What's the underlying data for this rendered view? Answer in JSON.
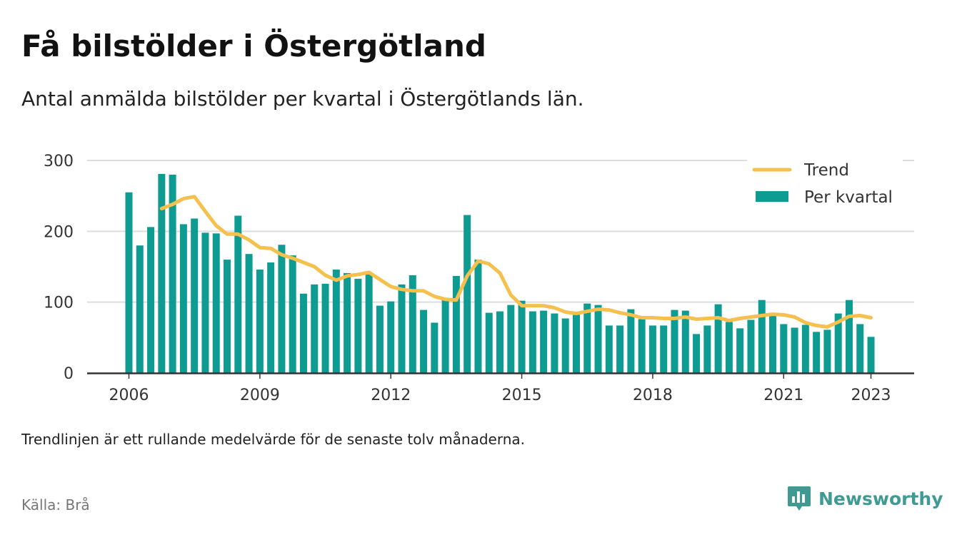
{
  "title": "Få bilstölder i Östergötland",
  "subtitle": "Antal anmälda bilstölder per kvartal i Östergötlands län.",
  "footnote": "Trendlinjen är ett rullande medelvärde för de senaste tolv månaderna.",
  "source": "Källa: Brå",
  "brand": {
    "name": "Newsworthy",
    "icon": "newsworthy-logo-icon"
  },
  "colors": {
    "bars": "#0e9c92",
    "trend": "#f5c04e",
    "grid": "#dddddd",
    "axis": "#333333",
    "brand": "#3e9a92"
  },
  "chart_data": {
    "type": "bar",
    "x_start": "2006 Q1",
    "x_ticks": [
      "2006",
      "2009",
      "2012",
      "2015",
      "2018",
      "2021",
      "2023"
    ],
    "y_ticks": [
      "0",
      "100",
      "200",
      "300"
    ],
    "ylim": [
      0,
      300
    ],
    "grid": true,
    "legend": {
      "position": "top-right",
      "items": [
        "Trend",
        "Per kvartal"
      ]
    },
    "series": [
      {
        "name": "Per kvartal",
        "kind": "bar",
        "values": [
          255,
          180,
          206,
          281,
          280,
          210,
          218,
          198,
          197,
          160,
          222,
          168,
          146,
          156,
          181,
          166,
          112,
          125,
          126,
          146,
          141,
          133,
          139,
          95,
          101,
          125,
          138,
          89,
          71,
          106,
          137,
          223,
          160,
          85,
          87,
          96,
          102,
          87,
          88,
          84,
          77,
          83,
          98,
          96,
          67,
          67,
          90,
          76,
          67,
          67,
          89,
          88,
          55,
          67,
          97,
          72,
          63,
          75,
          103,
          82,
          69,
          64,
          68,
          58,
          61,
          84,
          103,
          69,
          51
        ]
      },
      {
        "name": "Trend",
        "kind": "line",
        "start_index": 3,
        "values": [
          232,
          238,
          246,
          249,
          228,
          208,
          196,
          196,
          188,
          177,
          176,
          167,
          162,
          156,
          150,
          138,
          131,
          137,
          139,
          142,
          132,
          122,
          118,
          116,
          116,
          108,
          104,
          103,
          137,
          158,
          154,
          141,
          110,
          95,
          95,
          95,
          92,
          86,
          84,
          87,
          90,
          89,
          85,
          82,
          78,
          78,
          77,
          77,
          79,
          76,
          77,
          78,
          74,
          77,
          79,
          81,
          83,
          82,
          79,
          71,
          67,
          65,
          72,
          80,
          81,
          78
        ]
      }
    ]
  }
}
